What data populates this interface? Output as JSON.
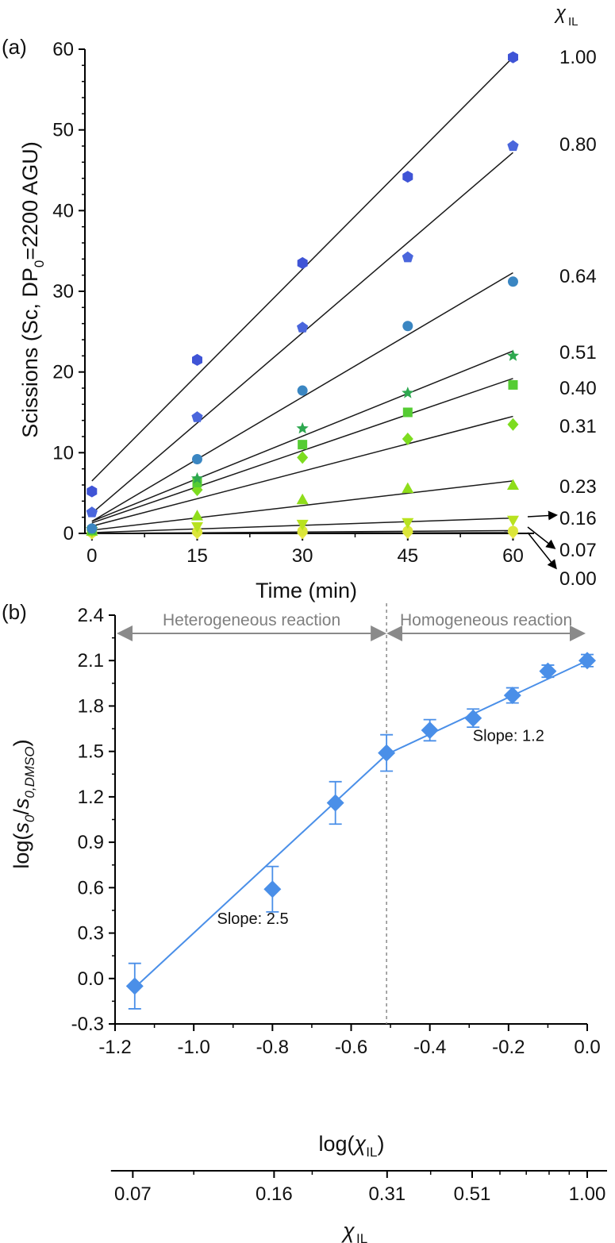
{
  "figure": {
    "panel_a_label": "(a)",
    "panel_b_label": "(b)",
    "chi_header_symbol": "χ",
    "chi_header_sub": "IL"
  },
  "chart_data": [
    {
      "type": "scatter",
      "title": "",
      "xlabel": "Time (min)",
      "ylabel": "Scissions (Sc, DP0=2200 AGU)",
      "ylabel_parts": {
        "main": "Scissions (Sc, DP",
        "sub": "0",
        "tail": "=2200 AGU)"
      },
      "xlim": [
        -1,
        63
      ],
      "ylim": [
        0,
        60
      ],
      "xticks": [
        0,
        15,
        30,
        45,
        60
      ],
      "xtick_labels": [
        "0",
        "15",
        "30",
        "45",
        "60"
      ],
      "yticks": [
        0,
        10,
        20,
        30,
        40,
        50,
        60
      ],
      "ytick_labels": [
        "0",
        "10",
        "20",
        "30",
        "40",
        "50",
        "60"
      ],
      "x": [
        0,
        15,
        30,
        45,
        60
      ],
      "series": [
        {
          "name": "1.00",
          "marker": "hexagon",
          "color": "#3f54d6",
          "values": [
            5.2,
            21.5,
            33.5,
            44.2,
            59.0
          ],
          "fit": [
            6.5,
            59.0
          ]
        },
        {
          "name": "0.80",
          "marker": "pentagon",
          "color": "#4a66dc",
          "values": [
            2.6,
            14.4,
            25.5,
            34.2,
            48.0
          ],
          "fit": [
            2.5,
            47.2
          ]
        },
        {
          "name": "0.64",
          "marker": "circle",
          "color": "#3a86c2",
          "values": [
            0.6,
            9.2,
            17.7,
            25.7,
            31.2
          ],
          "fit": [
            1.5,
            32.3
          ]
        },
        {
          "name": "0.51",
          "marker": "star",
          "color": "#2ea84f",
          "values": [
            0.5,
            6.8,
            13.0,
            17.4,
            22.0
          ],
          "fit": [
            1.5,
            22.6
          ]
        },
        {
          "name": "0.40",
          "marker": "square",
          "color": "#55cc33",
          "values": [
            0.4,
            6.3,
            11.0,
            15.0,
            18.4
          ],
          "fit": [
            1.3,
            19.2
          ]
        },
        {
          "name": "0.31",
          "marker": "diamond",
          "color": "#7ddc1f",
          "values": [
            0.4,
            5.4,
            9.4,
            11.7,
            13.5
          ],
          "fit": [
            0.9,
            14.5
          ]
        },
        {
          "name": "0.23",
          "marker": "triangle-up",
          "color": "#8fdd1a",
          "values": [
            0.3,
            2.2,
            4.2,
            5.6,
            6.0
          ],
          "fit": [
            0.4,
            6.5
          ]
        },
        {
          "name": "0.16",
          "marker": "triangle-down",
          "color": "#b8e21f",
          "values": [
            0.2,
            0.8,
            1.1,
            1.3,
            1.6
          ],
          "fit": [
            0.1,
            1.9
          ]
        },
        {
          "name": "0.07",
          "marker": "circle",
          "color": "#dbe63a",
          "values": [
            0.1,
            0.2,
            0.3,
            0.3,
            0.3
          ],
          "fit": [
            0.0,
            0.35
          ]
        },
        {
          "name": "0.00",
          "marker": "diamond",
          "color": "#eae84a",
          "values": [
            0.0,
            0.05,
            0.05,
            0.1,
            0.1
          ],
          "fit": [
            0.0,
            0.1
          ]
        }
      ],
      "legend_labels": [
        "1.00",
        "0.80",
        "0.64",
        "0.51",
        "0.40",
        "0.31",
        "0.23",
        "0.16",
        "0.07",
        "0.00"
      ]
    },
    {
      "type": "scatter",
      "title": "",
      "xlabel": "log(χIL)",
      "xlabel_parts": {
        "main": "log(",
        "chi": "χ",
        "sub": "IL",
        "tail": ")"
      },
      "ylabel": "log(s0/s0,DMSO)",
      "ylabel_parts": {
        "a": "log(",
        "s": "s",
        "s_sub": "0",
        "slash": "/",
        "s2": "s",
        "s2_sub": "0,DMSO",
        "close": ")"
      },
      "xlim": [
        -1.2,
        0.0
      ],
      "ylim": [
        -0.3,
        2.4
      ],
      "xticks": [
        -1.2,
        -1.0,
        -0.8,
        -0.6,
        -0.4,
        -0.2,
        0.0
      ],
      "xtick_labels": [
        "-1.2",
        "-1.0",
        "-0.8",
        "-0.6",
        "-0.4",
        "-0.2",
        "0.0"
      ],
      "yticks": [
        -0.3,
        0.0,
        0.3,
        0.6,
        0.9,
        1.2,
        1.5,
        1.8,
        2.1,
        2.4
      ],
      "ytick_labels": [
        "-0.3",
        "0.0",
        "0.3",
        "0.6",
        "0.9",
        "1.2",
        "1.5",
        "1.8",
        "2.1",
        "2.4"
      ],
      "points": {
        "x": [
          -1.15,
          -0.8,
          -0.64,
          -0.51,
          -0.4,
          -0.29,
          -0.19,
          -0.1,
          0.0
        ],
        "y": [
          -0.05,
          0.59,
          1.16,
          1.49,
          1.64,
          1.72,
          1.87,
          2.03,
          2.1
        ],
        "err": [
          0.15,
          0.15,
          0.14,
          0.12,
          0.07,
          0.06,
          0.05,
          0.04,
          0.04
        ]
      },
      "fit_segments": [
        {
          "x": [
            -1.15,
            -0.51
          ],
          "y": [
            -0.06,
            1.48
          ]
        },
        {
          "x": [
            -0.51,
            0.0
          ],
          "y": [
            1.48,
            2.1
          ]
        }
      ],
      "boundary_x": -0.51,
      "regions": [
        {
          "label": "Heterogeneous reaction",
          "x_from": -1.2,
          "x_to": -0.51
        },
        {
          "label": "Homogeneous reaction",
          "x_from": -0.51,
          "x_to": 0.0
        }
      ],
      "annotations": [
        {
          "text": "Slope: 2.5",
          "x": -0.85,
          "y": 0.36
        },
        {
          "text": "Slope: 1.2",
          "x": -0.2,
          "y": 1.57
        }
      ],
      "color": "#4a8fe8",
      "secondary_axis": {
        "label_symbol": "χ",
        "label_sub": "IL",
        "tick_values": [
          0.07,
          0.16,
          0.31,
          0.51,
          1.0
        ],
        "tick_labels": [
          "0.07",
          "0.16",
          "0.31",
          "0.51",
          "1.00"
        ]
      }
    }
  ]
}
